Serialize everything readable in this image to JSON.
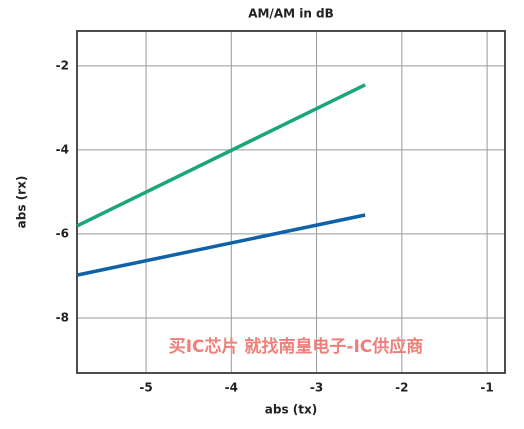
{
  "chart_data": {
    "type": "line",
    "title": "AM/AM in dB",
    "x_label": "abs (tx)",
    "y_label": "abs (rx)",
    "annotation": "买IC芯片 就找南皇电子-IC供应商",
    "x": [
      -5.81,
      -2.43
    ],
    "series": [
      {
        "name": "green",
        "color": "#1aa57a",
        "values": [
          -5.81,
          -2.45
        ]
      },
      {
        "name": "blue",
        "color": "#0f62a8",
        "values": [
          -6.98,
          -5.55
        ]
      }
    ],
    "xlim": [
      -5.81,
      -0.79
    ],
    "xticks": [
      -5,
      -4,
      -3,
      -2,
      -1
    ],
    "ylim": [
      -9.31,
      -1.17
    ],
    "yticks": [
      -8,
      -6,
      -4,
      -2
    ],
    "grid": true
  }
}
